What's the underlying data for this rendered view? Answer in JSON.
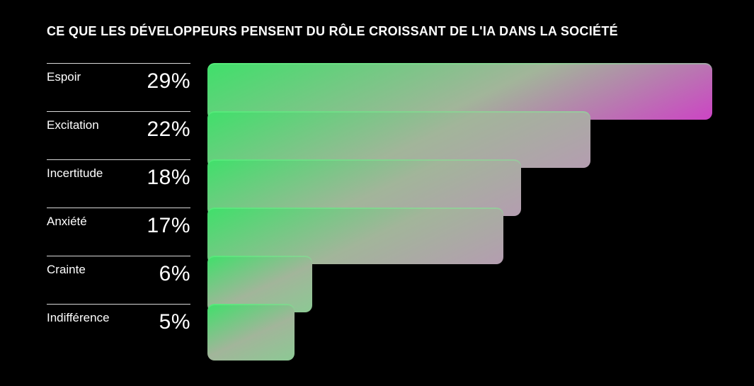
{
  "chart_data": {
    "type": "bar",
    "orientation": "horizontal",
    "title": "CE QUE LES DÉVELOPPEURS PENSENT DU RÔLE CROISSANT DE L'IA DANS LA SOCIÉTÉ",
    "categories": [
      "Espoir",
      "Excitation",
      "Incertitude",
      "Anxiété",
      "Crainte",
      "Indifférence"
    ],
    "values": [
      29,
      22,
      18,
      17,
      6,
      5
    ],
    "value_labels": [
      "29%",
      "22%",
      "18%",
      "17%",
      "6%",
      "5%"
    ],
    "unit": "%",
    "xlim": [
      0,
      29
    ],
    "grid": false,
    "legend": "none"
  },
  "colors": {
    "background": "#000000",
    "text": "#ffffff",
    "bar_start": "#3fe06a",
    "bar_mid": "#a2b59a",
    "bar_end": "#cc44c4",
    "row_divider": "#d8d8d8"
  }
}
